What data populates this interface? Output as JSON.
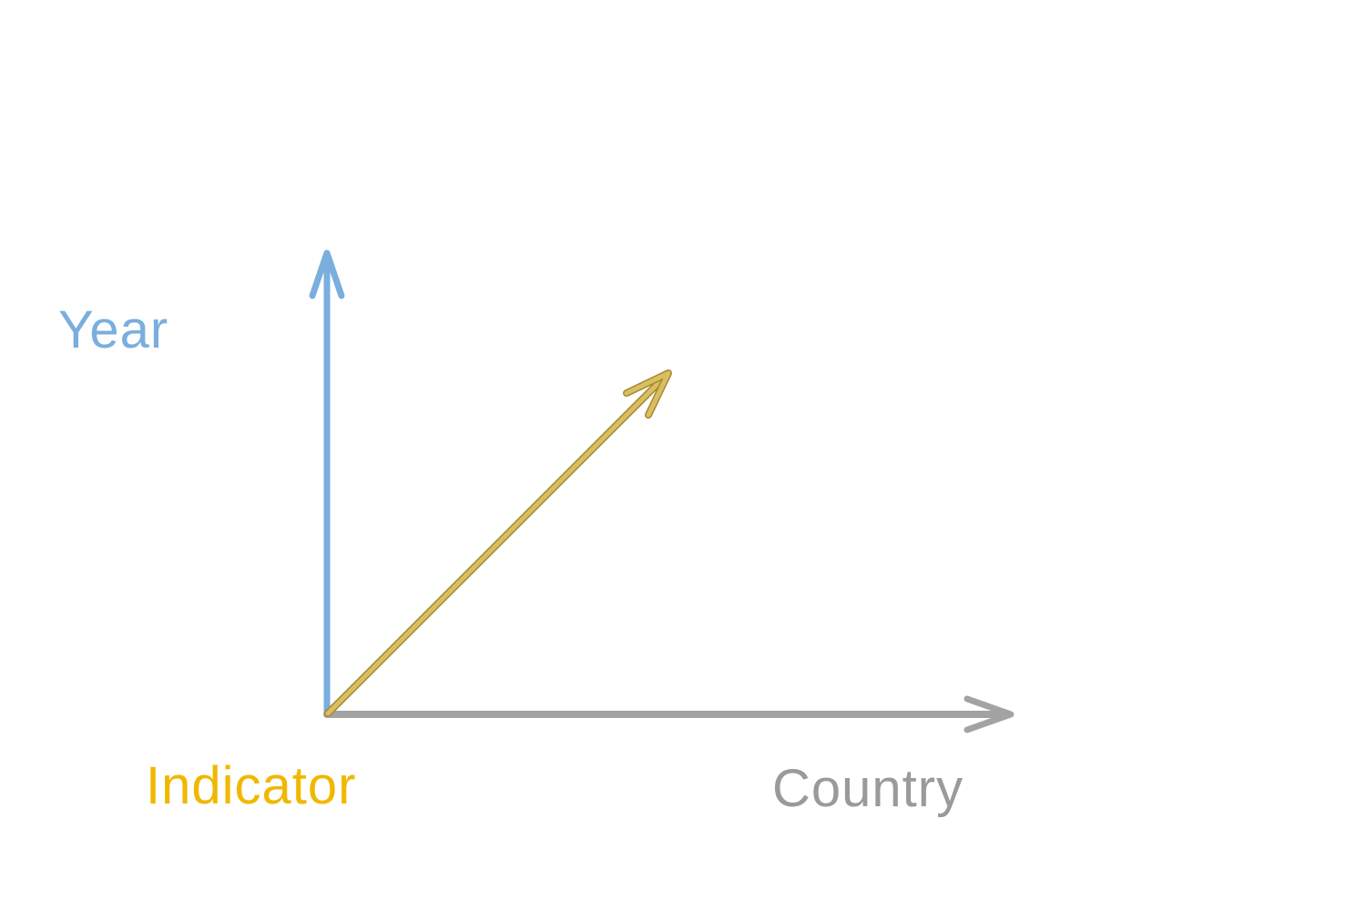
{
  "diagram": {
    "axes": [
      {
        "key": "year",
        "label": "Year",
        "color": "#7aaede",
        "direction": "up"
      },
      {
        "key": "indicator",
        "label": "Indicator",
        "color": "#d9be63",
        "label_color": "#f0b800",
        "direction": "diagonal-up-right"
      },
      {
        "key": "country",
        "label": "Country",
        "color": "#a3a3a3",
        "label_color": "#9a9a9a",
        "direction": "right"
      }
    ]
  }
}
